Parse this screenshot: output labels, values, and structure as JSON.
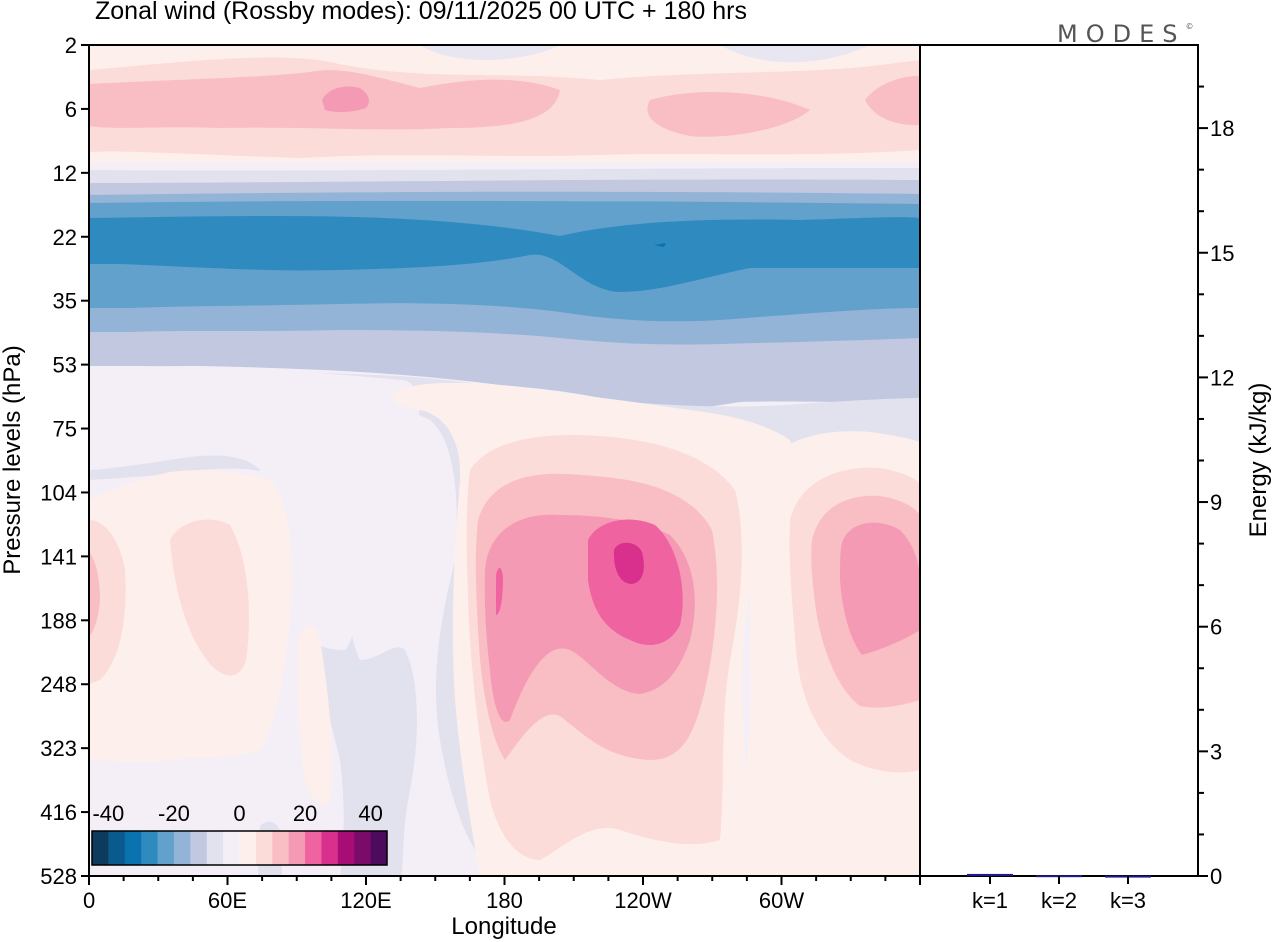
{
  "title": "Zonal wind (Rossby modes):  09/11/2025  00 UTC  + 180 hrs",
  "logo_text": "MODES",
  "logo_mark": "©",
  "chart_data": [
    {
      "type": "heatmap",
      "title": "Zonal wind (Rossby modes):  09/11/2025  00 UTC  + 180 hrs",
      "xlabel": "Longitude",
      "ylabel": "Pressure levels (hPa)",
      "x_ticks": [
        {
          "lon": 0,
          "label": "0"
        },
        {
          "lon": 60,
          "label": "60E"
        },
        {
          "lon": 120,
          "label": "120E"
        },
        {
          "lon": 180,
          "label": "180"
        },
        {
          "lon": 240,
          "label": "120W"
        },
        {
          "lon": 300,
          "label": "60W"
        }
      ],
      "xlim": [
        0,
        360
      ],
      "y_levels": [
        "2",
        "6",
        "12",
        "22",
        "35",
        "53",
        "75",
        "104",
        "141",
        "188",
        "248",
        "323",
        "416",
        "528"
      ],
      "colorbar": {
        "labels": [
          "-40",
          "-20",
          "0",
          "20",
          "40"
        ],
        "range": [
          -45,
          45
        ],
        "colors": [
          "#0c3b5e",
          "#0a5a8e",
          "#0b72b0",
          "#2f8ac0",
          "#62a1cb",
          "#93b4d6",
          "#c1c8e0",
          "#e2e1ee",
          "#f4eff6",
          "#fdf0ec",
          "#fcdcd8",
          "#f9bec3",
          "#f59ab5",
          "#f063a1",
          "#d8308c",
          "#a80d76",
          "#7b0b68",
          "#4c0b5d"
        ]
      },
      "fields": [
        {
          "region": "upper stratosphere easterly band",
          "level_range": [
            "2",
            "12"
          ],
          "value": 10
        },
        {
          "region": "core near 6 hPa at 120E",
          "level": "6",
          "value": 18
        },
        {
          "region": "westerly-negative jet",
          "level_range": [
            "12",
            "53"
          ],
          "min_value": -25
        },
        {
          "region": "positive maximum near 120W",
          "level": "141",
          "value": 28
        },
        {
          "region": "positive maximum near 20W",
          "level": "141",
          "value": 18
        },
        {
          "region": "negative region near 120E",
          "level_range": [
            "53",
            "528"
          ],
          "value": -5
        }
      ]
    },
    {
      "type": "bar",
      "ylabel": "Energy (kJ/kg)",
      "categories": [
        "k=1",
        "k=2",
        "k=3"
      ],
      "values": [
        0.05,
        0.02,
        0.01
      ],
      "ylim": [
        0,
        20
      ],
      "y_ticks": [
        "0",
        "3",
        "6",
        "9",
        "12",
        "15",
        "18"
      ],
      "bar_color": "#1f1a8a"
    }
  ]
}
